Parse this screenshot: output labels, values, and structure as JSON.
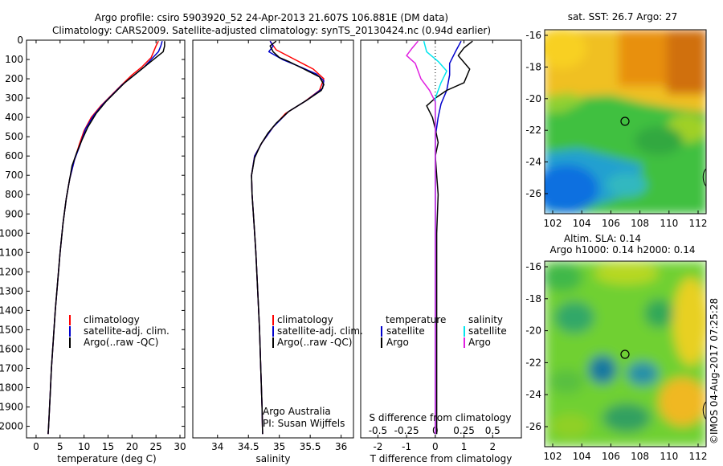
{
  "title_line1": "Argo profile: csiro 5903920_52 24-Apr-2013 21.607S 106.881E (DM data)",
  "title_line2": "Climatology: CARS2009. Satellite-adjusted climatology: synTS_20130424.nc (0.94d earlier)",
  "watermark": "©IMOS 04-Aug-2017 07:25:28",
  "colors": {
    "red": "#ff0000",
    "blue": "#0000cc",
    "black": "#000000",
    "cyan": "#00e5ee",
    "magenta": "#e020e0"
  },
  "chart_data": [
    {
      "type": "line",
      "id": "temperature",
      "xlabel": "temperature (deg C)",
      "ylabel": "",
      "xlim": [
        -2,
        31
      ],
      "ylim": [
        2060,
        0
      ],
      "xticks": [
        0,
        5,
        10,
        15,
        20,
        25,
        30
      ],
      "yticks": [
        0,
        100,
        200,
        300,
        400,
        500,
        600,
        700,
        800,
        900,
        1000,
        1100,
        1200,
        1300,
        1400,
        1500,
        1600,
        1700,
        1800,
        1900,
        2000
      ],
      "legend": [
        "climatology",
        "satellite-adj. clim.",
        "Argo(..raw -QC)"
      ],
      "series": [
        {
          "name": "climatology",
          "color": "red",
          "width": 1.5,
          "points": [
            [
              25.5,
              5
            ],
            [
              25,
              30
            ],
            [
              24.5,
              60
            ],
            [
              24,
              90
            ],
            [
              22,
              140
            ],
            [
              20,
              180
            ],
            [
              17.5,
              240
            ],
            [
              15.5,
              290
            ],
            [
              13.5,
              340
            ],
            [
              11.5,
              400
            ],
            [
              10,
              470
            ],
            [
              9,
              540
            ],
            [
              8,
              620
            ],
            [
              7,
              720
            ],
            [
              6.3,
              820
            ],
            [
              5.6,
              950
            ],
            [
              5,
              1100
            ],
            [
              4.5,
              1250
            ],
            [
              4,
              1400
            ],
            [
              3.6,
              1550
            ],
            [
              3.2,
              1700
            ],
            [
              2.9,
              1850
            ],
            [
              2.6,
              2000
            ],
            [
              2.5,
              2040
            ]
          ]
        },
        {
          "name": "satellite-adj. clim.",
          "color": "blue",
          "width": 1.5,
          "points": [
            [
              26.3,
              5
            ],
            [
              26,
              30
            ],
            [
              25.5,
              60
            ],
            [
              24,
              100
            ],
            [
              22.5,
              140
            ],
            [
              20.5,
              180
            ],
            [
              18,
              230
            ],
            [
              16,
              280
            ],
            [
              14,
              330
            ],
            [
              12,
              390
            ],
            [
              10.3,
              460
            ],
            [
              9.2,
              540
            ],
            [
              8,
              620
            ],
            [
              7,
              720
            ],
            [
              6.3,
              820
            ],
            [
              5.6,
              950
            ],
            [
              5,
              1100
            ],
            [
              4.5,
              1250
            ],
            [
              4,
              1400
            ],
            [
              3.6,
              1550
            ],
            [
              3.2,
              1700
            ],
            [
              2.9,
              1850
            ],
            [
              2.6,
              2000
            ],
            [
              2.5,
              2040
            ]
          ]
        },
        {
          "name": "Argo(..raw -QC)",
          "color": "black",
          "width": 1.5,
          "points": [
            [
              26.8,
              5
            ],
            [
              26.8,
              30
            ],
            [
              26.5,
              60
            ],
            [
              25,
              90
            ],
            [
              23.5,
              120
            ],
            [
              22,
              150
            ],
            [
              20.5,
              180
            ],
            [
              18.5,
              220
            ],
            [
              16.5,
              270
            ],
            [
              14.5,
              320
            ],
            [
              12.5,
              380
            ],
            [
              10.8,
              450
            ],
            [
              9.5,
              520
            ],
            [
              8.5,
              580
            ],
            [
              7.5,
              650
            ],
            [
              7,
              720
            ],
            [
              6.3,
              820
            ],
            [
              5.6,
              950
            ],
            [
              5,
              1100
            ],
            [
              4.5,
              1250
            ],
            [
              4,
              1400
            ],
            [
              3.6,
              1550
            ],
            [
              3.2,
              1700
            ],
            [
              2.9,
              1850
            ],
            [
              2.6,
              2000
            ],
            [
              2.5,
              2040
            ]
          ]
        }
      ]
    },
    {
      "type": "line",
      "id": "salinity",
      "xlabel": "salinity",
      "ylabel": "",
      "xlim": [
        33.6,
        36.2
      ],
      "ylim": [
        2060,
        0
      ],
      "xticks": [
        34,
        34.5,
        35,
        35.5,
        36
      ],
      "legend": [
        "climatology",
        "satellite-adj. clim.",
        "Argo(..raw -QC)"
      ],
      "note": [
        "Argo Australia",
        "PI: Susan Wijffels"
      ],
      "series": [
        {
          "name": "climatology",
          "color": "red",
          "width": 1.5,
          "points": [
            [
              34.85,
              5
            ],
            [
              34.95,
              50
            ],
            [
              35.25,
              100
            ],
            [
              35.55,
              150
            ],
            [
              35.72,
              200
            ],
            [
              35.65,
              260
            ],
            [
              35.4,
              320
            ],
            [
              35.1,
              380
            ],
            [
              34.9,
              450
            ],
            [
              34.72,
              530
            ],
            [
              34.6,
              600
            ],
            [
              34.55,
              700
            ],
            [
              34.56,
              800
            ],
            [
              34.59,
              950
            ],
            [
              34.62,
              1100
            ],
            [
              34.65,
              1300
            ],
            [
              34.68,
              1500
            ],
            [
              34.7,
              1700
            ],
            [
              34.72,
              1900
            ],
            [
              34.73,
              2040
            ]
          ]
        },
        {
          "name": "satellite-adj. clim.",
          "color": "blue",
          "width": 1.5,
          "points": [
            [
              34.85,
              5
            ],
            [
              34.9,
              30
            ],
            [
              34.83,
              60
            ],
            [
              35.05,
              100
            ],
            [
              35.35,
              140
            ],
            [
              35.6,
              175
            ],
            [
              35.72,
              210
            ],
            [
              35.7,
              250
            ],
            [
              35.45,
              310
            ],
            [
              35.15,
              370
            ],
            [
              34.9,
              450
            ],
            [
              34.72,
              530
            ],
            [
              34.6,
              600
            ],
            [
              34.55,
              700
            ],
            [
              34.56,
              800
            ],
            [
              34.59,
              950
            ],
            [
              34.62,
              1100
            ],
            [
              34.65,
              1300
            ],
            [
              34.68,
              1500
            ],
            [
              34.7,
              1700
            ],
            [
              34.72,
              1900
            ],
            [
              34.73,
              2040
            ]
          ]
        },
        {
          "name": "Argo(..raw -QC)",
          "color": "black",
          "width": 1.5,
          "points": [
            [
              34.95,
              5
            ],
            [
              34.85,
              30
            ],
            [
              34.9,
              60
            ],
            [
              35.0,
              90
            ],
            [
              35.15,
              110
            ],
            [
              35.4,
              150
            ],
            [
              35.65,
              190
            ],
            [
              35.72,
              230
            ],
            [
              35.68,
              260
            ],
            [
              35.45,
              310
            ],
            [
              35.15,
              370
            ],
            [
              34.95,
              430
            ],
            [
              34.82,
              480
            ],
            [
              34.7,
              540
            ],
            [
              34.6,
              610
            ],
            [
              34.55,
              700
            ],
            [
              34.56,
              800
            ],
            [
              34.59,
              950
            ],
            [
              34.62,
              1100
            ],
            [
              34.65,
              1300
            ],
            [
              34.68,
              1500
            ],
            [
              34.7,
              1700
            ],
            [
              34.72,
              1900
            ],
            [
              34.73,
              2040
            ]
          ]
        }
      ]
    },
    {
      "type": "line",
      "id": "difference",
      "xlabel": "T difference from climatology",
      "xlabel2": "S difference from climatology",
      "xlim": [
        -2.6,
        3.0
      ],
      "ylim": [
        2060,
        0
      ],
      "xticks": [
        -2,
        -1,
        0,
        1,
        2
      ],
      "xticks_top": [
        -2,
        -1,
        0,
        1,
        2
      ],
      "xticklabels_top": [
        "-0.5",
        "-0.25",
        "0",
        "0.25",
        "0.5"
      ],
      "legend_temp_title": "temperature",
      "legend_sal_title": "salinity",
      "legend_temp": [
        "satellite",
        "Argo"
      ],
      "legend_sal": [
        "satellite",
        "Argo"
      ],
      "series": [
        {
          "name": "temperature satellite",
          "color": "blue",
          "width": 1.5,
          "points": [
            [
              0.9,
              5
            ],
            [
              0.7,
              60
            ],
            [
              0.5,
              120
            ],
            [
              0.5,
              180
            ],
            [
              0.4,
              260
            ],
            [
              0.2,
              330
            ],
            [
              0.1,
              400
            ],
            [
              0.0,
              500
            ],
            [
              0.0,
              700
            ],
            [
              0.0,
              2040
            ]
          ]
        },
        {
          "name": "temperature Argo",
          "color": "black",
          "width": 1.5,
          "points": [
            [
              1.3,
              5
            ],
            [
              1.0,
              40
            ],
            [
              0.8,
              80
            ],
            [
              1.2,
              150
            ],
            [
              1.0,
              220
            ],
            [
              0.4,
              260
            ],
            [
              0.0,
              300
            ],
            [
              -0.3,
              340
            ],
            [
              -0.1,
              400
            ],
            [
              0.0,
              460
            ],
            [
              0.1,
              530
            ],
            [
              0.0,
              600
            ],
            [
              0.05,
              700
            ],
            [
              0.1,
              800
            ],
            [
              0.05,
              1000
            ],
            [
              0.05,
              1200
            ],
            [
              0.05,
              1500
            ],
            [
              0.05,
              2040
            ]
          ]
        },
        {
          "name": "salinity satellite",
          "color": "cyan",
          "width": 1.5,
          "points": [
            [
              -0.4,
              5
            ],
            [
              -0.3,
              60
            ],
            [
              0.1,
              110
            ],
            [
              0.4,
              160
            ],
            [
              0.2,
              220
            ],
            [
              0.0,
              300
            ],
            [
              0.0,
              500
            ],
            [
              0.0,
              2040
            ]
          ]
        },
        {
          "name": "salinity Argo",
          "color": "magenta",
          "width": 1.5,
          "points": [
            [
              -0.6,
              5
            ],
            [
              -0.8,
              40
            ],
            [
              -1.0,
              80
            ],
            [
              -0.7,
              120
            ],
            [
              -0.5,
              200
            ],
            [
              -0.2,
              260
            ],
            [
              0.0,
              320
            ],
            [
              0.0,
              500
            ],
            [
              0.0,
              2040
            ]
          ]
        }
      ]
    }
  ],
  "maps": [
    {
      "title": "sat. SST: 26.7  Argo: 27",
      "xticks": [
        "102",
        "104",
        "106",
        "108",
        "110",
        "112"
      ],
      "yticks": [
        "-16",
        "-18",
        "-20",
        "-22",
        "-24",
        "-26"
      ]
    },
    {
      "title_line1": "Altim. SLA: 0.14",
      "title_line2": "Argo h1000: 0.14  h2000: 0.14",
      "xticks": [
        "102",
        "104",
        "106",
        "108",
        "110",
        "112"
      ],
      "yticks": [
        "-16",
        "-18",
        "-20",
        "-22",
        "-24",
        "-26"
      ]
    }
  ]
}
